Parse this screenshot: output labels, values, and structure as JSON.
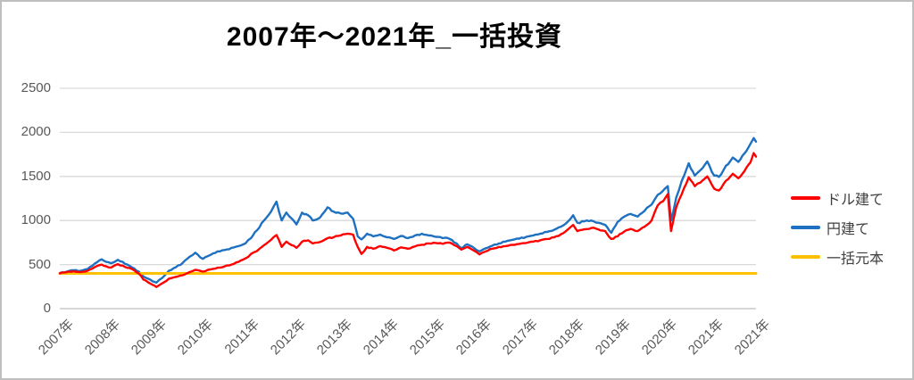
{
  "title": "2007年～2021年_一括投資",
  "colors": {
    "dollar_line": "#ff0000",
    "yen_line": "#1e70c0",
    "principal_line": "#ffc000",
    "gridline": "#d9d9d9",
    "axis_line": "#bfbfbf",
    "tick_text": "#595959",
    "legend_text": "#404040",
    "title_text": "#000000",
    "border": "#bfbfbf"
  },
  "y_axis": {
    "ticks": [
      0,
      500,
      1000,
      1500,
      2000,
      2500
    ]
  },
  "x_axis": {
    "labels": [
      "2007年",
      "2008年",
      "2009年",
      "2010年",
      "2011年",
      "2012年",
      "2013年",
      "2014年",
      "2015年",
      "2016年",
      "2017年",
      "2018年",
      "2019年",
      "2020年",
      "2021年",
      "2021年"
    ]
  },
  "legend": {
    "items": [
      {
        "label": "ドル建て",
        "color": "#ff0000"
      },
      {
        "label": "円建て",
        "color": "#1e70c0"
      },
      {
        "label": "一括元本",
        "color": "#ffc000"
      }
    ]
  },
  "chart_data": {
    "type": "line",
    "title": "2007年～2021年_一括投資",
    "xlabel": "",
    "ylabel": "",
    "ylim": [
      0,
      2500
    ],
    "grid": true,
    "legend_position": "right",
    "x_tick_labels": [
      "2007年",
      "2008年",
      "2009年",
      "2010年",
      "2011年",
      "2012年",
      "2013年",
      "2014年",
      "2015年",
      "2016年",
      "2017年",
      "2018年",
      "2019年",
      "2020年",
      "2021年",
      "2021年"
    ],
    "x": [
      0.0,
      0.15,
      0.3,
      0.45,
      0.6,
      0.75,
      0.9,
      1.0,
      1.1,
      1.25,
      1.4,
      1.55,
      1.7,
      1.8,
      1.9,
      2.0,
      2.08,
      2.2,
      2.35,
      2.5,
      2.65,
      2.8,
      2.92,
      3.08,
      3.25,
      3.4,
      3.55,
      3.7,
      3.85,
      4.0,
      4.12,
      4.25,
      4.4,
      4.55,
      4.67,
      4.78,
      4.88,
      5.0,
      5.1,
      5.22,
      5.35,
      5.45,
      5.6,
      5.77,
      5.9,
      6.05,
      6.2,
      6.32,
      6.42,
      6.5,
      6.62,
      6.75,
      6.9,
      7.05,
      7.2,
      7.35,
      7.5,
      7.65,
      7.8,
      7.95,
      8.1,
      8.25,
      8.4,
      8.55,
      8.65,
      8.78,
      8.92,
      9.04,
      9.18,
      9.32,
      9.46,
      9.6,
      9.75,
      9.9,
      10.05,
      10.2,
      10.35,
      10.5,
      10.65,
      10.8,
      10.95,
      11.06,
      11.15,
      11.3,
      11.45,
      11.6,
      11.75,
      11.88,
      12.02,
      12.15,
      12.3,
      12.45,
      12.6,
      12.75,
      12.88,
      13.0,
      13.1,
      13.17,
      13.28,
      13.4,
      13.55,
      13.68,
      13.8,
      13.95,
      14.1,
      14.2,
      14.35,
      14.5,
      14.62,
      14.75,
      14.88,
      14.95,
      15.0
    ],
    "series": [
      {
        "name": "ドル建て",
        "color": "#ff0000",
        "values": [
          400,
          415,
          425,
          415,
          430,
          470,
          500,
          480,
          465,
          505,
          475,
          450,
          400,
          330,
          300,
          270,
          245,
          285,
          340,
          360,
          380,
          415,
          440,
          420,
          445,
          465,
          480,
          500,
          530,
          570,
          620,
          655,
          720,
          780,
          835,
          700,
          760,
          720,
          690,
          760,
          775,
          740,
          755,
          800,
          810,
          830,
          850,
          840,
          700,
          620,
          700,
          680,
          710,
          690,
          660,
          695,
          680,
          705,
          725,
          740,
          745,
          735,
          750,
          710,
          670,
          700,
          660,
          615,
          650,
          680,
          700,
          710,
          725,
          735,
          745,
          760,
          775,
          790,
          810,
          845,
          900,
          950,
          880,
          900,
          915,
          900,
          880,
          790,
          820,
          870,
          905,
          880,
          930,
          1000,
          1170,
          1220,
          1300,
          880,
          1150,
          1300,
          1490,
          1390,
          1430,
          1500,
          1360,
          1340,
          1450,
          1530,
          1480,
          1560,
          1660,
          1765,
          1725
        ]
      },
      {
        "name": "円建て",
        "color": "#1e70c0",
        "values": [
          405,
          420,
          435,
          430,
          450,
          510,
          560,
          530,
          515,
          555,
          510,
          470,
          420,
          365,
          340,
          310,
          295,
          345,
          430,
          470,
          520,
          590,
          635,
          565,
          610,
          650,
          665,
          690,
          710,
          740,
          800,
          890,
          1000,
          1100,
          1215,
          1000,
          1090,
          1020,
          955,
          1090,
          1060,
          1000,
          1030,
          1150,
          1100,
          1080,
          1090,
          1020,
          820,
          785,
          850,
          820,
          840,
          810,
          790,
          825,
          800,
          830,
          850,
          830,
          815,
          800,
          790,
          740,
          685,
          730,
          690,
          650,
          685,
          715,
          740,
          760,
          780,
          795,
          815,
          830,
          850,
          870,
          895,
          930,
          990,
          1060,
          975,
          990,
          1000,
          975,
          950,
          860,
          985,
          1040,
          1075,
          1045,
          1110,
          1180,
          1290,
          1340,
          1390,
          1000,
          1260,
          1450,
          1650,
          1510,
          1570,
          1670,
          1510,
          1495,
          1620,
          1715,
          1665,
          1760,
          1870,
          1935,
          1895
        ]
      },
      {
        "name": "一括元本",
        "color": "#ffc000",
        "constant": 400
      }
    ]
  }
}
